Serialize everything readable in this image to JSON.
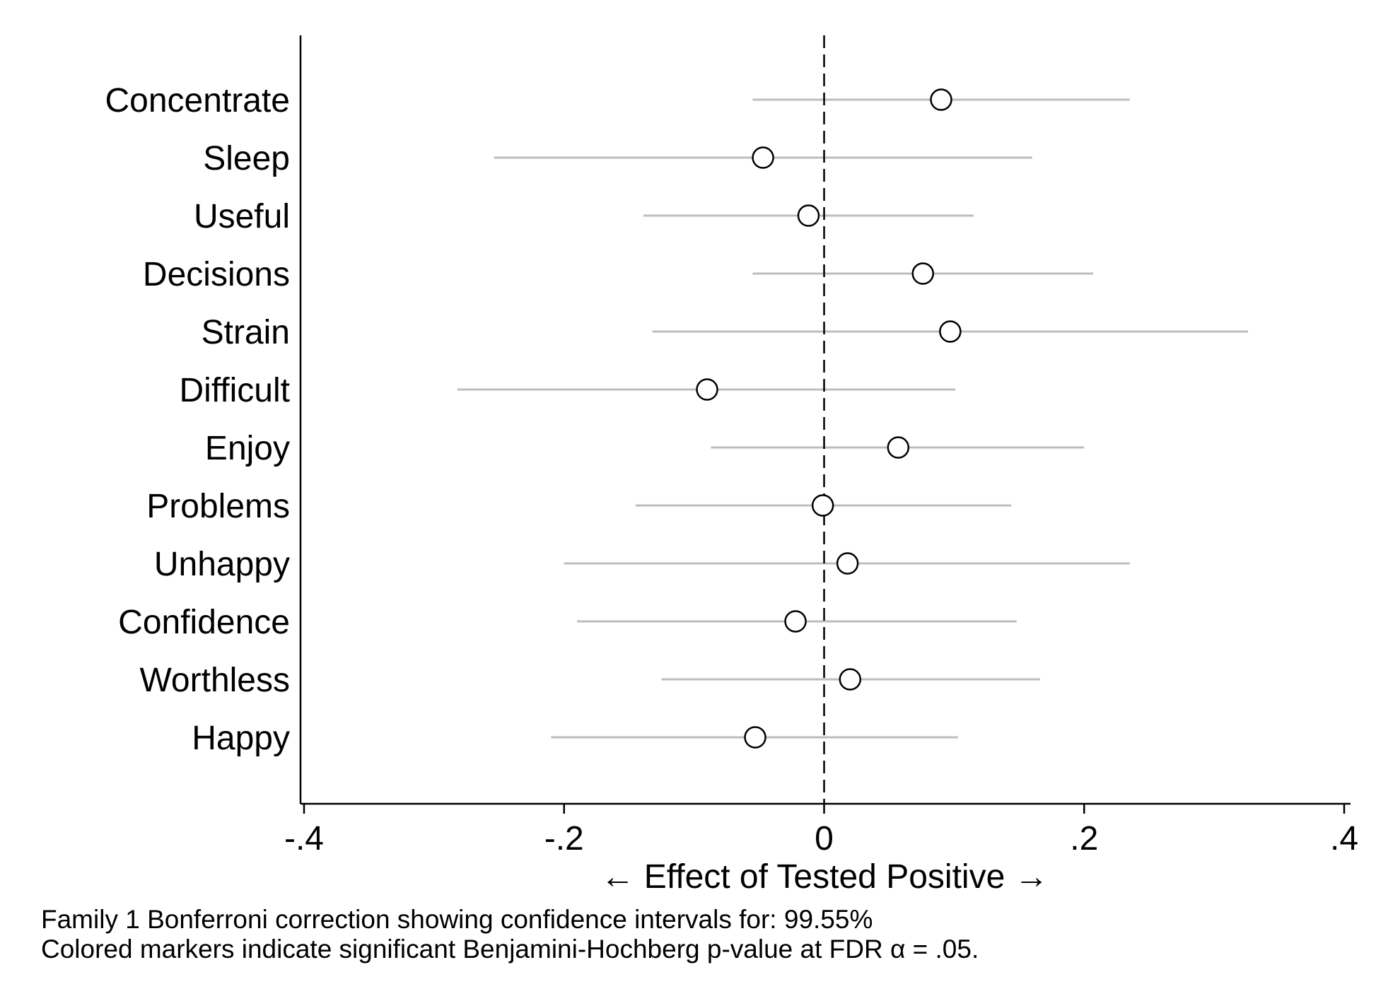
{
  "chart_data": {
    "type": "scatter",
    "subtype": "coefficient-plot",
    "categories": [
      "Concentrate",
      "Sleep",
      "Useful",
      "Decisions",
      "Strain",
      "Difficult",
      "Enjoy",
      "Problems",
      "Unhappy",
      "Confidence",
      "Worthless",
      "Happy"
    ],
    "estimates": [
      0.09,
      -0.047,
      -0.012,
      0.076,
      0.097,
      -0.09,
      0.057,
      -0.001,
      0.018,
      -0.022,
      0.02,
      -0.053
    ],
    "ci_lower": [
      -0.055,
      -0.254,
      -0.139,
      -0.055,
      -0.132,
      -0.282,
      -0.087,
      -0.145,
      -0.2,
      -0.19,
      -0.125,
      -0.21
    ],
    "ci_upper": [
      0.235,
      0.16,
      0.115,
      0.207,
      0.326,
      0.101,
      0.2,
      0.144,
      0.235,
      0.148,
      0.166,
      0.103
    ],
    "reference_line": 0,
    "xlim": [
      -0.4,
      0.4
    ],
    "xticks": [
      -0.4,
      -0.2,
      0,
      0.2,
      0.4
    ],
    "xtick_labels": [
      "-.4",
      "-.2",
      "0",
      ".2",
      ".4"
    ],
    "xlabel": "← Effect of Tested Positive →",
    "grid": false,
    "colors": {
      "ci_line": "#bdbdbd",
      "marker_edge": "#000000",
      "marker_fill": "#ffffff",
      "reference": "#000000"
    }
  },
  "notes": [
    "Family 1 Bonferroni correction showing confidence intervals for: 99.55%",
    "Colored markers indicate significant Benjamini-Hochberg p-value at FDR α = .05."
  ]
}
